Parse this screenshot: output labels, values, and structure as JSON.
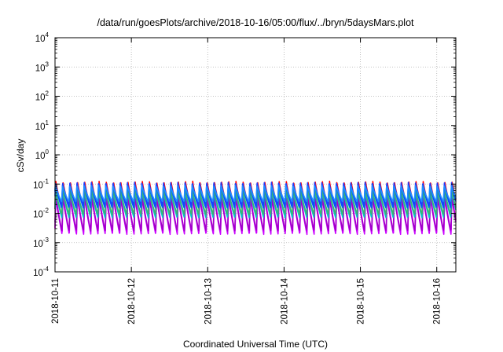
{
  "chart_data": {
    "type": "line",
    "title": "/data/run/goesPlots/archive/2018-10-16/05:00/flux/../bryn/5daysMars.plot",
    "xlabel": "Coordinated Universal Time (UTC)",
    "ylabel": "cSv/day",
    "y_scale": "log",
    "ylim": [
      0.0001,
      10000
    ],
    "y_ticks": [
      {
        "base": "10",
        "exp": "-4"
      },
      {
        "base": "10",
        "exp": "-3"
      },
      {
        "base": "10",
        "exp": "-2"
      },
      {
        "base": "10",
        "exp": "-1"
      },
      {
        "base": "10",
        "exp": "0"
      },
      {
        "base": "10",
        "exp": "1"
      },
      {
        "base": "10",
        "exp": "2"
      },
      {
        "base": "10",
        "exp": "3"
      },
      {
        "base": "10",
        "exp": "4"
      }
    ],
    "x_ticks": [
      "2018-10-11",
      "2018-10-12",
      "2018-10-13",
      "2018-10-14",
      "2018-10-15",
      "2018-10-16"
    ],
    "xlim_days": [
      0,
      5.25
    ],
    "grid": true,
    "legend": "none",
    "cycles_per_day": 10.6,
    "series": [
      {
        "color": "#ff0000",
        "peak": 0.125,
        "trough": 0.014
      },
      {
        "color": "#ff00ff",
        "peak": 0.055,
        "trough": 0.0022
      },
      {
        "color": "#cc00ff",
        "peak": 0.045,
        "trough": 0.0019
      },
      {
        "color": "#a000c8",
        "peak": 0.04,
        "trough": 0.0025
      },
      {
        "color": "#00c8c8",
        "peak": 0.06,
        "trough": 0.007
      },
      {
        "color": "#3cb371",
        "peak": 0.07,
        "trough": 0.009
      },
      {
        "color": "#0055ff",
        "peak": 0.1,
        "trough": 0.015
      },
      {
        "color": "#1e3cff",
        "peak": 0.115,
        "trough": 0.02
      },
      {
        "color": "#1e90ff",
        "peak": 0.09,
        "trough": 0.025
      }
    ]
  }
}
